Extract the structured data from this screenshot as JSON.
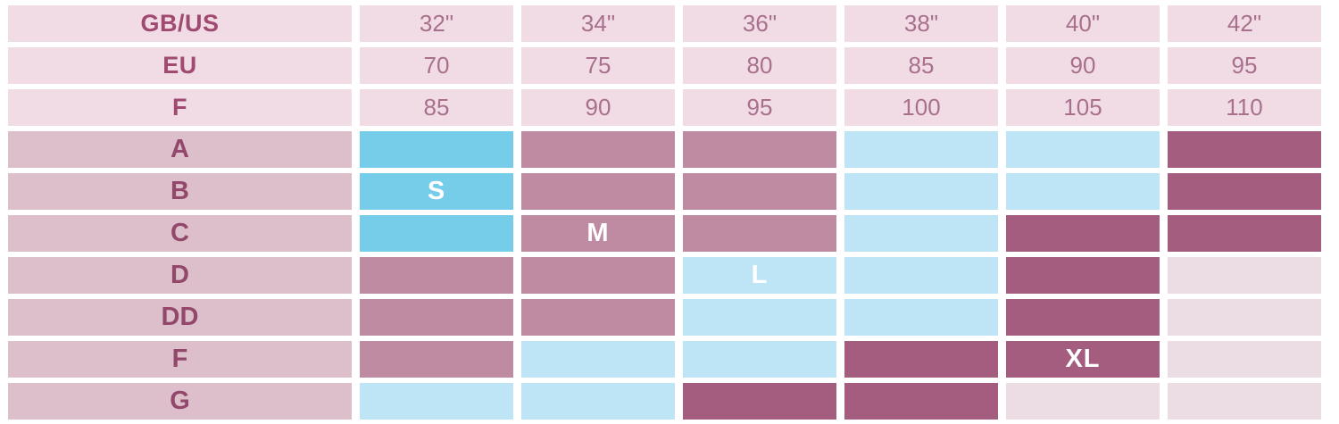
{
  "colors": {
    "page_bg": "#ffffff",
    "header_bg": "#f1dce5",
    "label_bg": "#dcbfcb",
    "cyan": "#76cde9",
    "light_blue": "#bee5f6",
    "mauve": "#bf8ba3",
    "dark_mauve": "#a45d7e",
    "pale_pink": "#ecdce3",
    "header_label_text": "#a04a72",
    "header_value_text": "#a8708c",
    "row_label_text": "#93486b",
    "marker_text": "#ffffff"
  },
  "chart_data": {
    "type": "table",
    "title": "Bra size conversion chart with S/M/L/XL zones",
    "band_size_rows": [
      {
        "label": "GB/US",
        "values": [
          "32\"",
          "34\"",
          "36\"",
          "38\"",
          "40\"",
          "42\""
        ]
      },
      {
        "label": "EU",
        "values": [
          "70",
          "75",
          "80",
          "85",
          "90",
          "95"
        ]
      },
      {
        "label": "F",
        "values": [
          "85",
          "90",
          "95",
          "100",
          "105",
          "110"
        ]
      }
    ],
    "cup_rows": [
      "A",
      "B",
      "C",
      "D",
      "DD",
      "F",
      "G"
    ],
    "size_markers": [
      {
        "label": "S",
        "cup_row": "B",
        "band_column": "32\""
      },
      {
        "label": "M",
        "cup_row": "C",
        "band_column": "34\""
      },
      {
        "label": "L",
        "cup_row": "D",
        "band_column": "36\""
      },
      {
        "label": "XL",
        "cup_row": "F",
        "band_column": "40\""
      }
    ],
    "cell_color_grid_by_cup_row": {
      "A": [
        "cyan",
        "mauve",
        "mauve",
        "blue",
        "blue",
        "dark"
      ],
      "B": [
        "cyan",
        "mauve",
        "mauve",
        "blue",
        "blue",
        "dark"
      ],
      "C": [
        "cyan",
        "mauve",
        "mauve",
        "blue",
        "dark",
        "dark"
      ],
      "D": [
        "mauve",
        "mauve",
        "blue",
        "blue",
        "dark",
        "pink"
      ],
      "DD": [
        "mauve",
        "mauve",
        "blue",
        "blue",
        "dark",
        "pink"
      ],
      "F": [
        "mauve",
        "blue",
        "blue",
        "dark",
        "dark",
        "pink"
      ],
      "G": [
        "blue",
        "blue",
        "dark",
        "dark",
        "pink",
        "pink"
      ]
    }
  },
  "table": {
    "header_rows": [
      {
        "label": "GB/US",
        "values": [
          "32\"",
          "34\"",
          "36\"",
          "38\"",
          "40\"",
          "42\""
        ]
      },
      {
        "label": "EU",
        "values": [
          "70",
          "75",
          "80",
          "85",
          "90",
          "95"
        ]
      },
      {
        "label": "F",
        "values": [
          "85",
          "90",
          "95",
          "100",
          "105",
          "110"
        ]
      }
    ],
    "body_rows": [
      {
        "label": "A",
        "cells": [
          {
            "c": "cyan",
            "t": ""
          },
          {
            "c": "mauve",
            "t": ""
          },
          {
            "c": "mauve",
            "t": ""
          },
          {
            "c": "blue",
            "t": ""
          },
          {
            "c": "blue",
            "t": ""
          },
          {
            "c": "dark",
            "t": ""
          }
        ]
      },
      {
        "label": "B",
        "cells": [
          {
            "c": "cyan",
            "t": "S"
          },
          {
            "c": "mauve",
            "t": ""
          },
          {
            "c": "mauve",
            "t": ""
          },
          {
            "c": "blue",
            "t": ""
          },
          {
            "c": "blue",
            "t": ""
          },
          {
            "c": "dark",
            "t": ""
          }
        ]
      },
      {
        "label": "C",
        "cells": [
          {
            "c": "cyan",
            "t": ""
          },
          {
            "c": "mauve",
            "t": "M"
          },
          {
            "c": "mauve",
            "t": ""
          },
          {
            "c": "blue",
            "t": ""
          },
          {
            "c": "dark",
            "t": ""
          },
          {
            "c": "dark",
            "t": ""
          }
        ]
      },
      {
        "label": "D",
        "cells": [
          {
            "c": "mauve",
            "t": ""
          },
          {
            "c": "mauve",
            "t": ""
          },
          {
            "c": "blue",
            "t": "L"
          },
          {
            "c": "blue",
            "t": ""
          },
          {
            "c": "dark",
            "t": ""
          },
          {
            "c": "pink",
            "t": ""
          }
        ]
      },
      {
        "label": "DD",
        "cells": [
          {
            "c": "mauve",
            "t": ""
          },
          {
            "c": "mauve",
            "t": ""
          },
          {
            "c": "blue",
            "t": ""
          },
          {
            "c": "blue",
            "t": ""
          },
          {
            "c": "dark",
            "t": ""
          },
          {
            "c": "pink",
            "t": ""
          }
        ]
      },
      {
        "label": "F",
        "cells": [
          {
            "c": "mauve",
            "t": ""
          },
          {
            "c": "blue",
            "t": ""
          },
          {
            "c": "blue",
            "t": ""
          },
          {
            "c": "dark",
            "t": ""
          },
          {
            "c": "dark",
            "t": "XL"
          },
          {
            "c": "pink",
            "t": ""
          }
        ]
      },
      {
        "label": "G",
        "cells": [
          {
            "c": "blue",
            "t": ""
          },
          {
            "c": "blue",
            "t": ""
          },
          {
            "c": "dark",
            "t": ""
          },
          {
            "c": "dark",
            "t": ""
          },
          {
            "c": "pink",
            "t": ""
          },
          {
            "c": "pink",
            "t": ""
          }
        ]
      }
    ]
  }
}
